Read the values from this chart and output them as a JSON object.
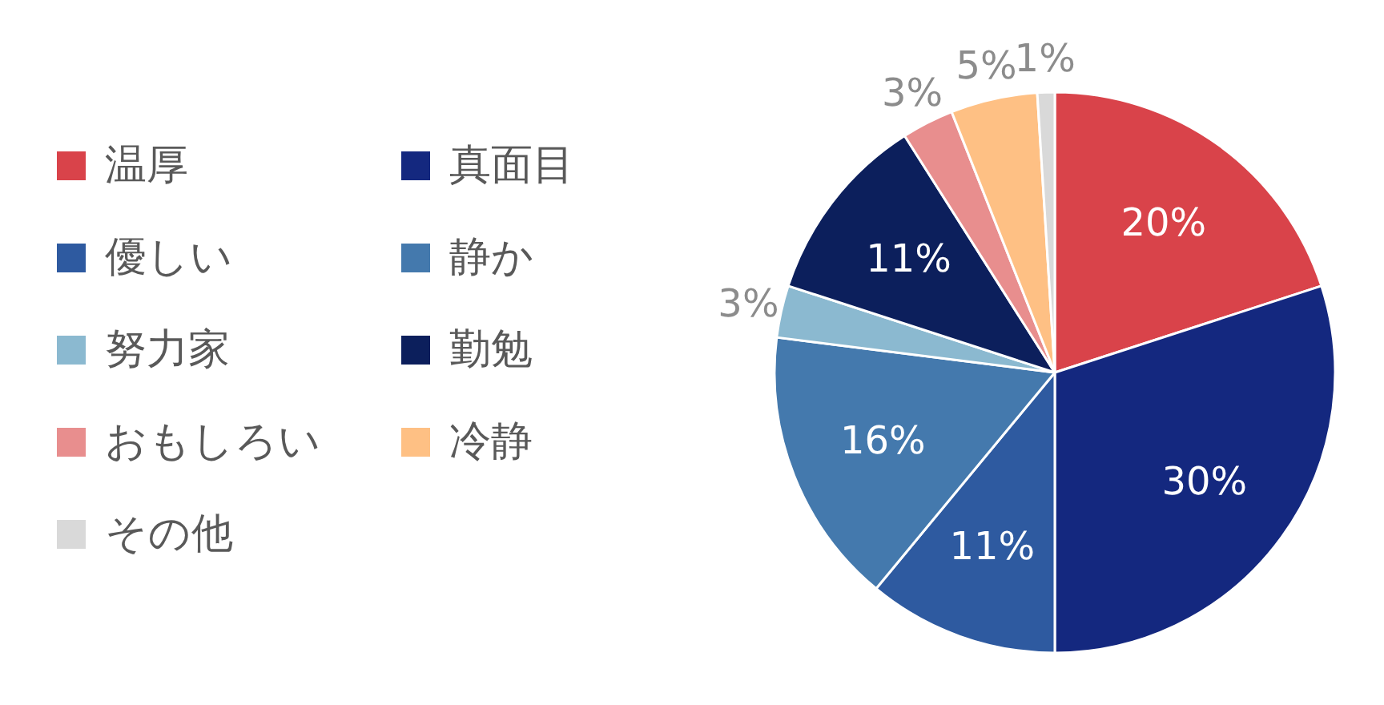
{
  "chart_data": {
    "type": "pie",
    "categories": [
      "温厚",
      "真面目",
      "優しい",
      "静か",
      "努力家",
      "勤勉",
      "おもしろい",
      "冷静",
      "その他"
    ],
    "values": [
      20,
      30,
      11,
      16,
      3,
      11,
      3,
      5,
      1
    ],
    "colors": [
      "#d9434a",
      "#14287f",
      "#2e5aa0",
      "#4479ad",
      "#8bb9d0",
      "#0c1f5c",
      "#e88e8e",
      "#fec084",
      "#d9d9d9"
    ],
    "value_labels": [
      "20%",
      "30%",
      "11%",
      "16%",
      "3%",
      "11%",
      "3%",
      "5%",
      "1%"
    ],
    "legend": "left"
  }
}
